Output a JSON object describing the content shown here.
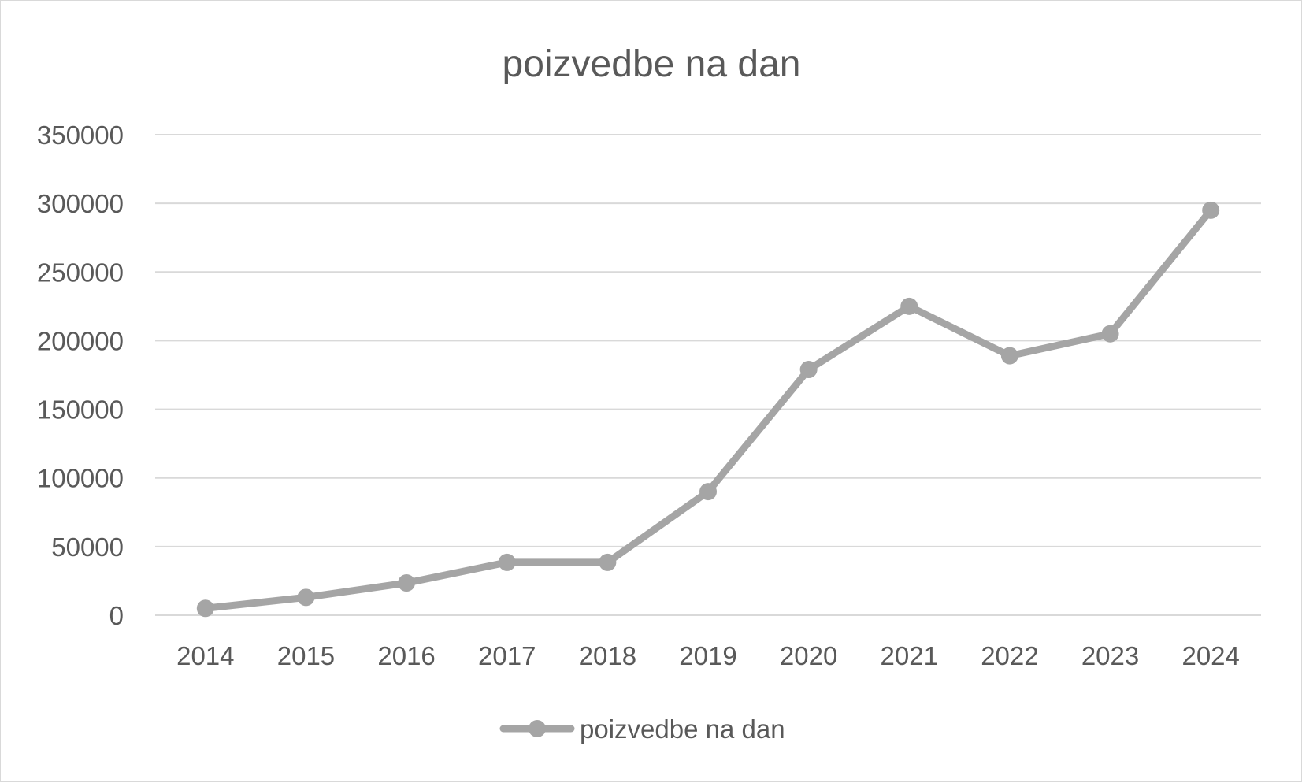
{
  "chart_data": {
    "type": "line",
    "title": "poizvedbe na dan",
    "xlabel": "",
    "ylabel": "",
    "categories": [
      "2014",
      "2015",
      "2016",
      "2017",
      "2018",
      "2019",
      "2020",
      "2021",
      "2022",
      "2023",
      "2024"
    ],
    "series": [
      {
        "name": "poizvedbe na dan",
        "values": [
          5000,
          13000,
          23500,
          38500,
          38500,
          90000,
          179000,
          225000,
          189000,
          205000,
          295000
        ],
        "color": "#a5a5a5"
      }
    ],
    "y_ticks": [
      "0",
      "50000",
      "100000",
      "150000",
      "200000",
      "250000",
      "300000",
      "350000"
    ],
    "ylim": [
      0,
      350000
    ],
    "grid": true,
    "legend_position": "bottom",
    "gridline_color": "#d9d9d9",
    "text_color": "#595959"
  }
}
